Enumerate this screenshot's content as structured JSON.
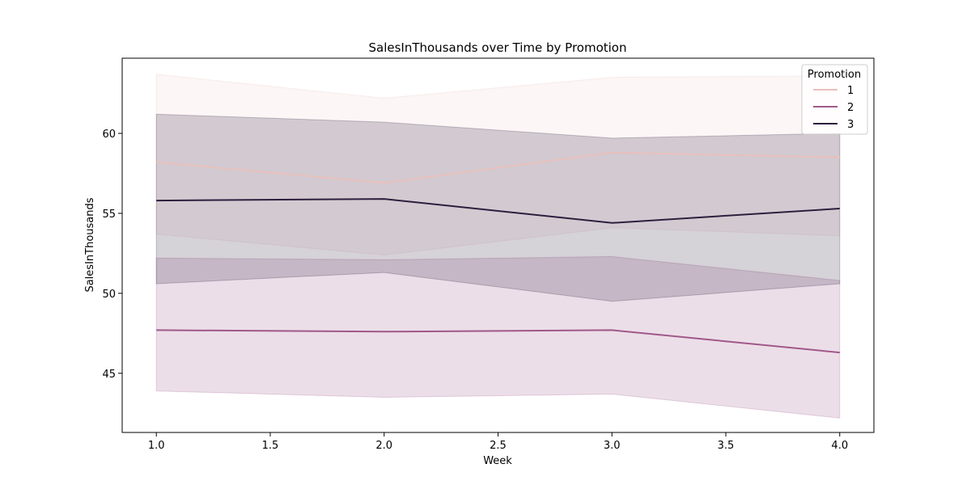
{
  "chart_data": {
    "type": "line",
    "title": "SalesInThousands over Time by Promotion",
    "xlabel": "Week",
    "ylabel": "SalesInThousands",
    "x": [
      1,
      2,
      3,
      4
    ],
    "xlim": [
      0.85,
      4.15
    ],
    "ylim": [
      41.3,
      64.7
    ],
    "xticks": [
      1.0,
      1.5,
      2.0,
      2.5,
      3.0,
      3.5,
      4.0
    ],
    "xtick_labels": [
      "1.0",
      "1.5",
      "2.0",
      "2.5",
      "3.0",
      "3.5",
      "4.0"
    ],
    "yticks": [
      45,
      50,
      55,
      60
    ],
    "ytick_labels": [
      "45",
      "50",
      "55",
      "60"
    ],
    "grid": false,
    "legend": {
      "title": "Promotion",
      "placement": "top-right"
    },
    "series": [
      {
        "name": "1",
        "color": "#e8c0bd",
        "values": [
          58.2,
          56.9,
          58.8,
          58.5
        ],
        "ci_low": [
          53.7,
          52.4,
          54.1,
          53.6
        ],
        "ci_high": [
          63.7,
          62.2,
          63.5,
          63.6
        ]
      },
      {
        "name": "2",
        "color": "#a0588a",
        "values": [
          47.7,
          47.6,
          47.7,
          46.3
        ],
        "ci_low": [
          43.9,
          43.5,
          43.7,
          42.2
        ],
        "ci_high": [
          52.2,
          52.1,
          52.3,
          50.8
        ]
      },
      {
        "name": "3",
        "color": "#2d1e3e",
        "values": [
          55.8,
          55.9,
          54.4,
          55.3
        ],
        "ci_low": [
          50.6,
          51.3,
          49.5,
          50.6
        ],
        "ci_high": [
          61.2,
          60.7,
          59.7,
          60.0
        ]
      }
    ]
  }
}
